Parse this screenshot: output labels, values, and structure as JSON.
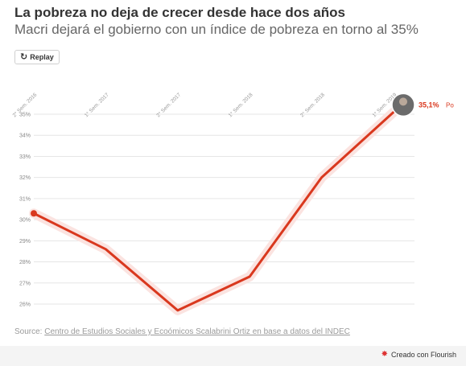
{
  "header": {
    "title": "La pobreza no deja de crecer desde hace dos años",
    "subtitle": "Macri dejará el gobierno con un índice de pobreza en torno al 35%"
  },
  "controls": {
    "replay_label": "Replay",
    "replay_icon": "replay-icon"
  },
  "source": {
    "prefix": "Source:",
    "link_text": "Centro de Estudios Sociales y Ecoómicos Scalabrini Ortiz en base a datos del INDEC"
  },
  "footer": {
    "credit": "Creado con Flourish",
    "icon": "flourish-icon"
  },
  "chart_data": {
    "type": "line",
    "title": "La pobreza no deja de crecer desde hace dos años",
    "subtitle": "Macri dejará el gobierno con un índice de pobreza en torno al 35%",
    "xlabel": "",
    "ylabel": "",
    "categories": [
      "2° Sem. 2016",
      "1° Sem. 2017",
      "2° Sem. 2017",
      "1° Sem. 2018",
      "2° Sem. 2018",
      "1° Sem. 2019"
    ],
    "series": [
      {
        "values": [
          30.3,
          28.6,
          25.7,
          27.3,
          32.0,
          35.1
        ],
        "color": "#d9381e"
      }
    ],
    "ylim": [
      26,
      35
    ],
    "yticks": [
      "35%",
      "34%",
      "33%",
      "32%",
      "31%",
      "30%",
      "29%",
      "28%",
      "27%",
      "26%"
    ],
    "end_label": {
      "value": "35,1%",
      "suffix": "Po"
    },
    "grid": true,
    "legend": "none"
  }
}
